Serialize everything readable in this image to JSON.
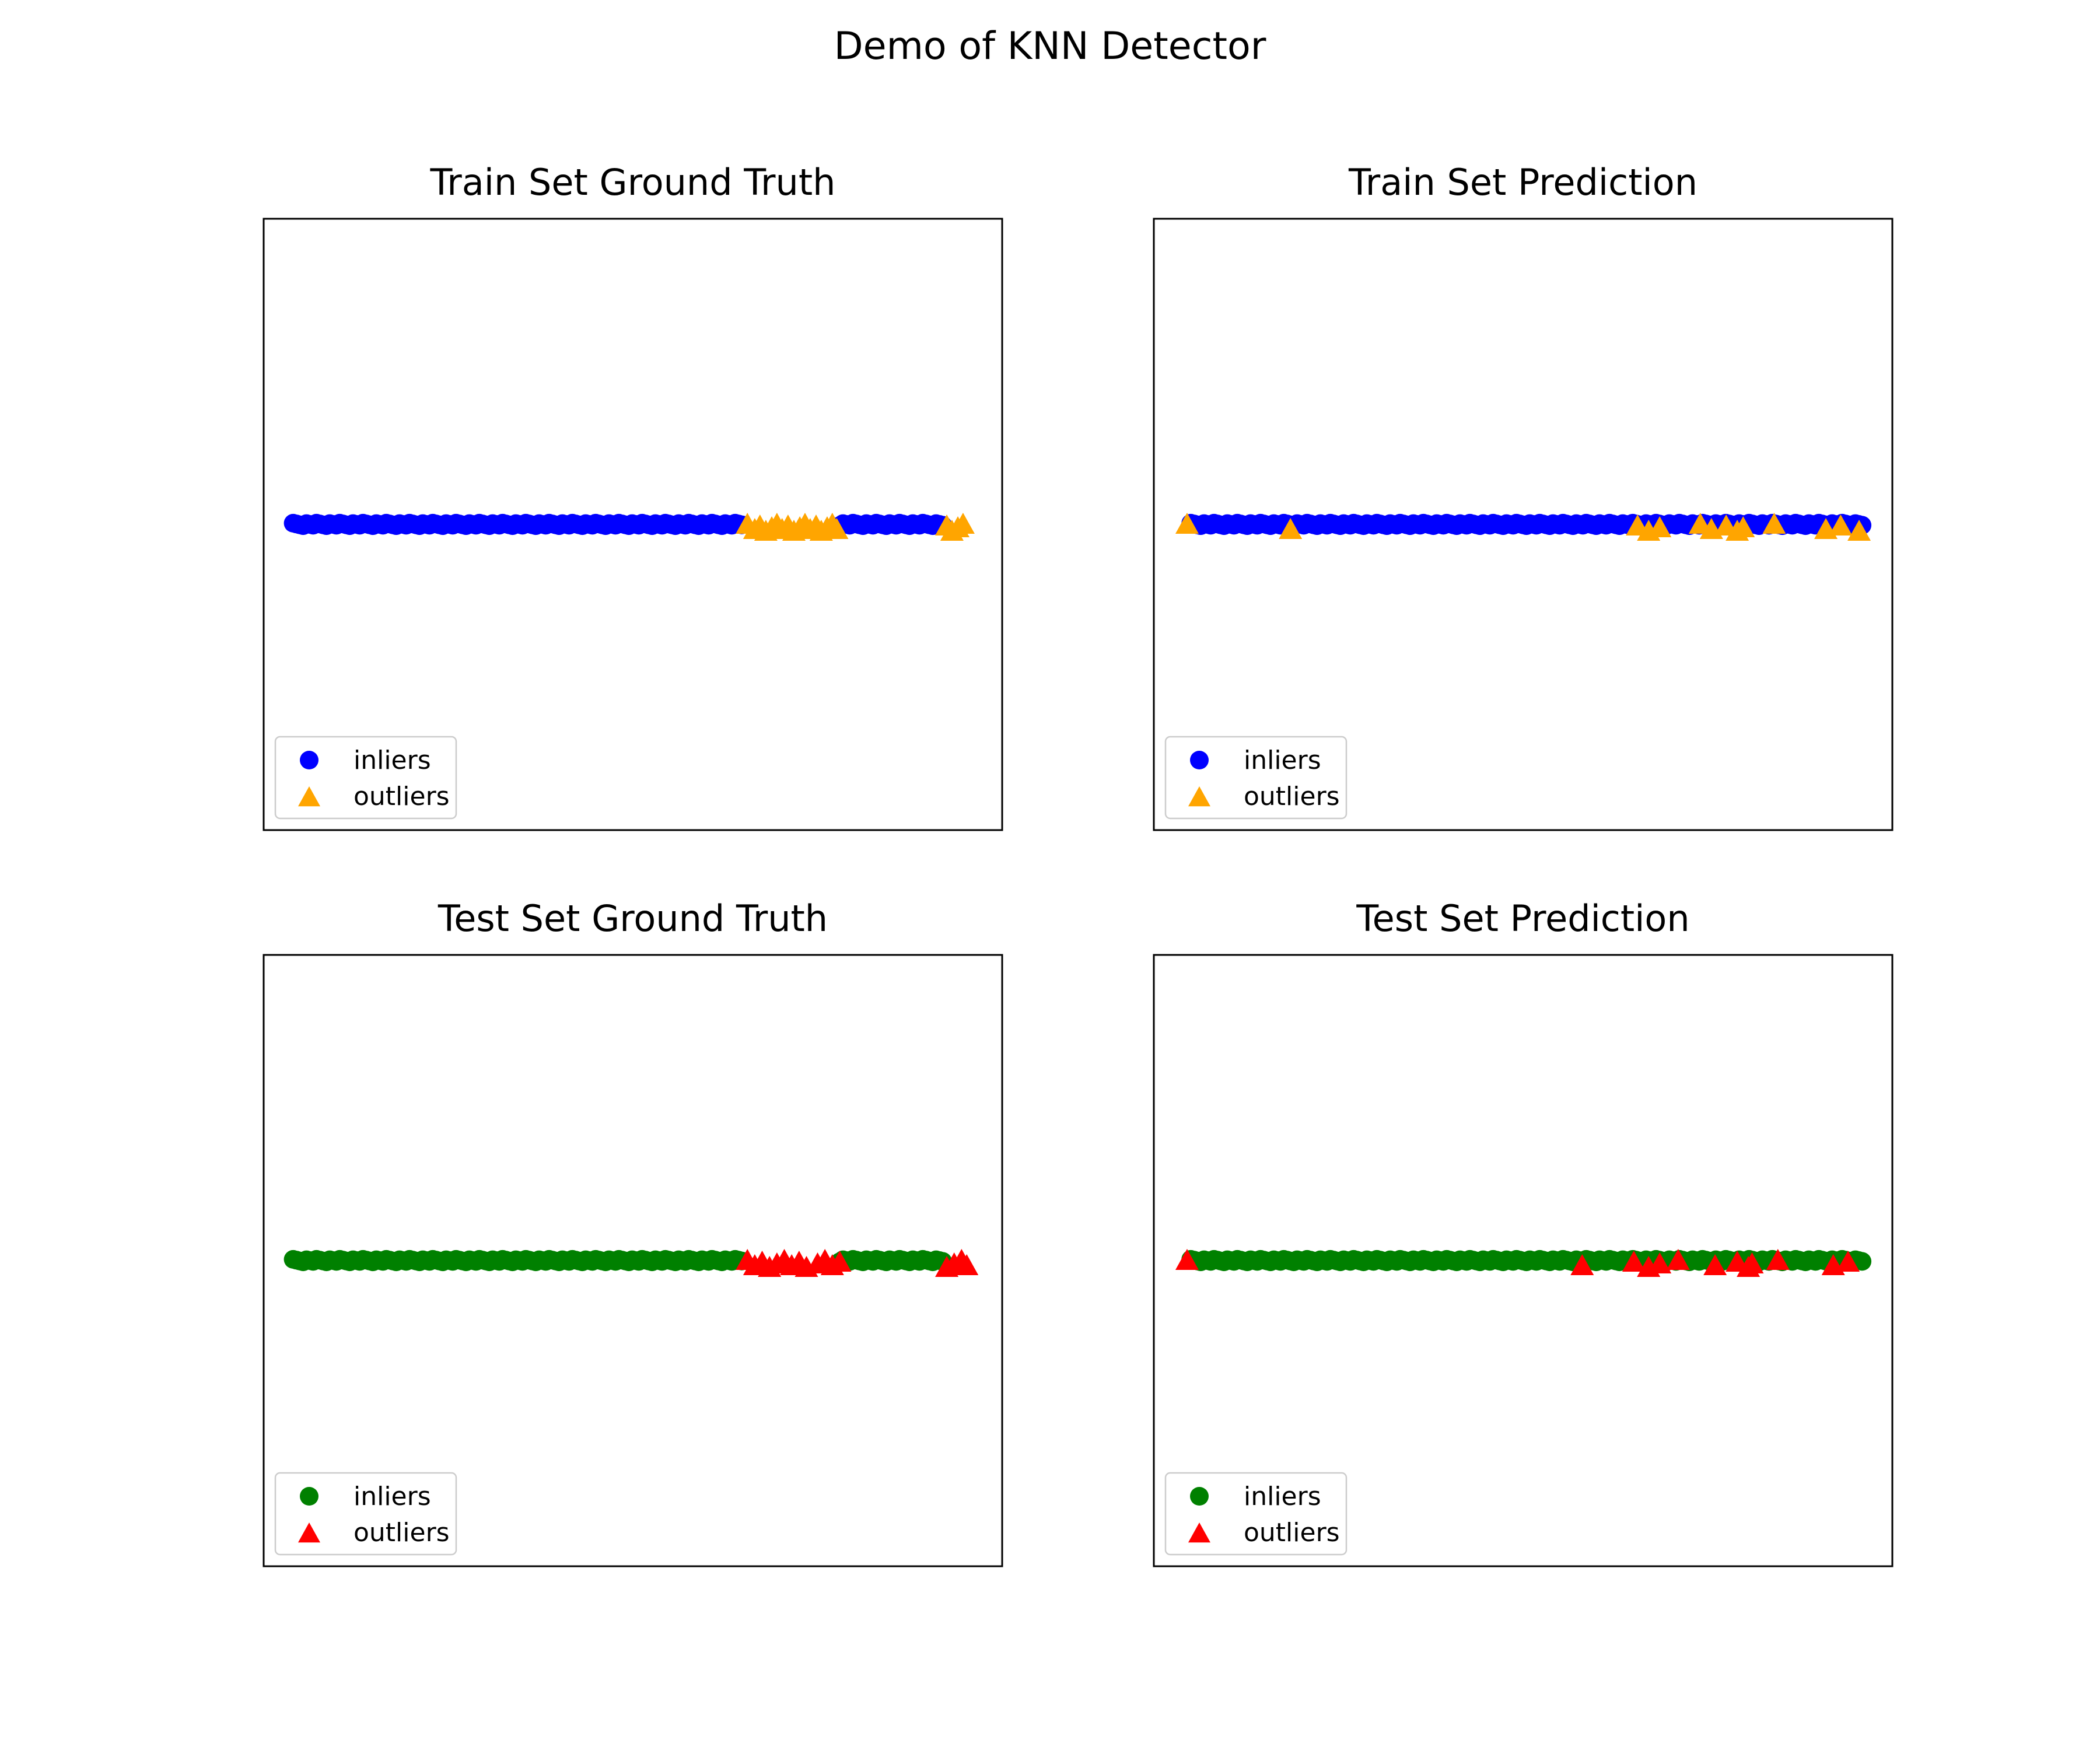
{
  "figure": {
    "title": "Demo of KNN Detector"
  },
  "chart_data": [
    {
      "type": "scatter",
      "title": "Train Set Ground Truth",
      "xlabel": "",
      "ylabel": "",
      "xlim": [
        0,
        100
      ],
      "ylim": [
        -1,
        1
      ],
      "ticks_visible": false,
      "grid": false,
      "legend_placement": "lower-left",
      "series": [
        {
          "name": "inliers",
          "marker": "circle",
          "color": "#0000ff",
          "segments": [
            [
              4,
              65
            ],
            [
              78,
              92
            ]
          ]
        },
        {
          "name": "outliers",
          "marker": "triangle",
          "color": "#ffa500",
          "x": [
            65.5,
            66.5,
            67.2,
            68,
            68.8,
            69.5,
            70.2,
            71,
            71.8,
            72.6,
            73.3,
            74,
            74.8,
            75.5,
            76.3,
            77,
            77.6,
            92.5,
            93.2,
            94,
            94.7
          ]
        }
      ]
    },
    {
      "type": "scatter",
      "title": "Train Set Prediction",
      "xlabel": "",
      "ylabel": "",
      "xlim": [
        0,
        100
      ],
      "ylim": [
        -1,
        1
      ],
      "ticks_visible": false,
      "grid": false,
      "legend_placement": "lower-left",
      "series": [
        {
          "name": "inliers",
          "marker": "circle",
          "color": "#0000ff",
          "segments": [
            [
              5,
              96
            ]
          ]
        },
        {
          "name": "outliers",
          "marker": "triangle",
          "color": "#ffa500",
          "x": [
            4.5,
            18.5,
            65.5,
            67,
            68.5,
            74,
            75.5,
            77.5,
            79,
            79.8,
            84,
            91,
            93,
            95.5
          ]
        }
      ]
    },
    {
      "type": "scatter",
      "title": "Test Set Ground Truth",
      "xlabel": "",
      "ylabel": "",
      "xlim": [
        0,
        100
      ],
      "ylim": [
        -1,
        1
      ],
      "ticks_visible": false,
      "grid": false,
      "legend_placement": "lower-left",
      "series": [
        {
          "name": "inliers",
          "marker": "circle",
          "color": "#008000",
          "segments": [
            [
              4,
              65
            ],
            [
              78,
              92
            ]
          ]
        },
        {
          "name": "outliers",
          "marker": "triangle",
          "color": "#ff0000",
          "x": [
            65.5,
            66.5,
            67.5,
            68.5,
            69.5,
            70.5,
            71.5,
            72.5,
            73.5,
            75,
            76,
            77,
            78,
            92.5,
            93.5,
            94.5,
            95.2
          ]
        }
      ]
    },
    {
      "type": "scatter",
      "title": "Test Set Prediction",
      "xlabel": "",
      "ylabel": "",
      "xlim": [
        0,
        100
      ],
      "ylim": [
        -1,
        1
      ],
      "ticks_visible": false,
      "grid": false,
      "legend_placement": "lower-left",
      "series": [
        {
          "name": "inliers",
          "marker": "circle",
          "color": "#008000",
          "segments": [
            [
              5,
              96
            ]
          ]
        },
        {
          "name": "outliers",
          "marker": "triangle",
          "color": "#ff0000",
          "x": [
            4.5,
            58,
            65,
            67,
            68.5,
            71,
            76,
            79,
            80.5,
            81,
            84.5,
            92,
            94
          ]
        }
      ]
    }
  ]
}
